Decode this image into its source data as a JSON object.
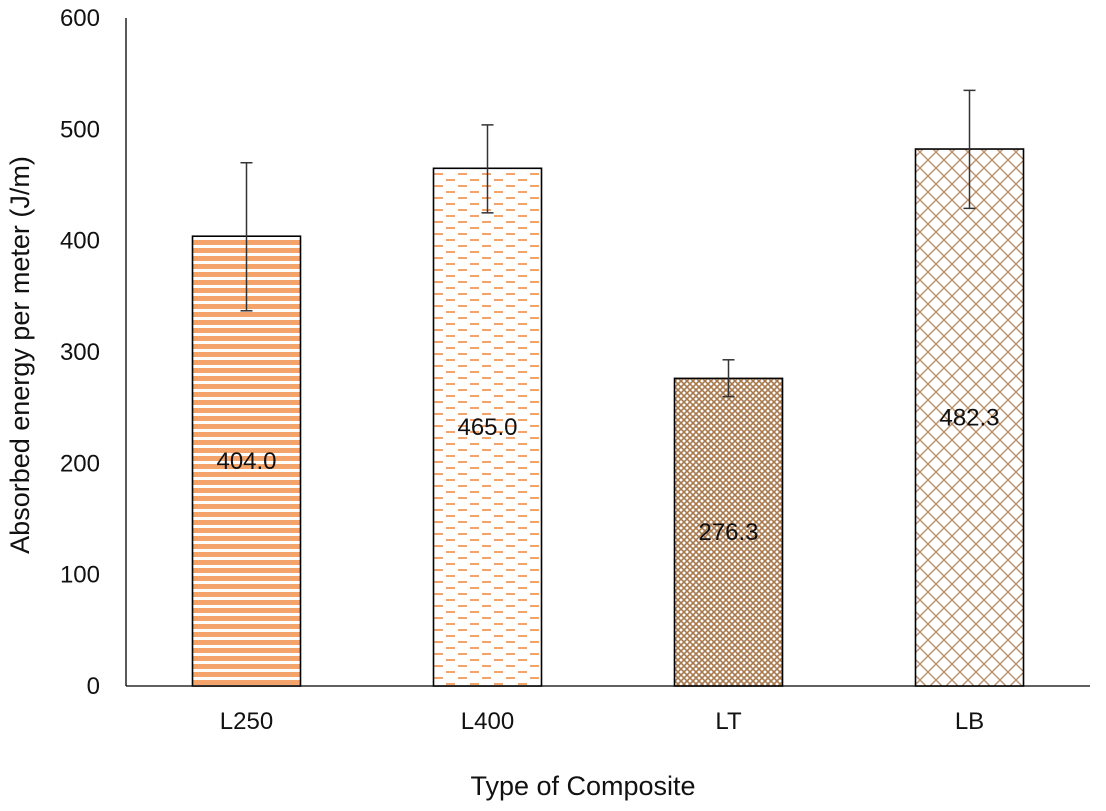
{
  "chart_data": {
    "type": "bar",
    "title": "",
    "xlabel": "Type of Composite",
    "ylabel": "Absorbed energy per meter (J/m)",
    "categories": [
      "L250",
      "L400",
      "LT",
      "LB"
    ],
    "values": [
      404.0,
      465.0,
      276.3,
      482.3
    ],
    "data_labels": [
      "404.0",
      "465.0",
      "276.3",
      "482.3"
    ],
    "error_bars": [
      {
        "low": 337,
        "high": 470
      },
      {
        "low": 425,
        "high": 504
      },
      {
        "low": 260,
        "high": 293
      },
      {
        "low": 429,
        "high": 535
      }
    ],
    "ylim": [
      0,
      600
    ],
    "yticks": [
      0,
      100,
      200,
      300,
      400,
      500,
      600
    ],
    "grid": false,
    "legend": "none",
    "patterns": [
      "horizontal-stripes",
      "dashes",
      "dense-crosshatch",
      "diamond-lattice"
    ],
    "colors": {
      "stripe_orange": "#f4a46a",
      "dash_orange": "#f4a46a",
      "lattice_brown": "#b9906a",
      "dark_brown": "#a8784d",
      "bar_outline": "#000000",
      "error_bar": "#333333",
      "axis": "#000000"
    }
  }
}
